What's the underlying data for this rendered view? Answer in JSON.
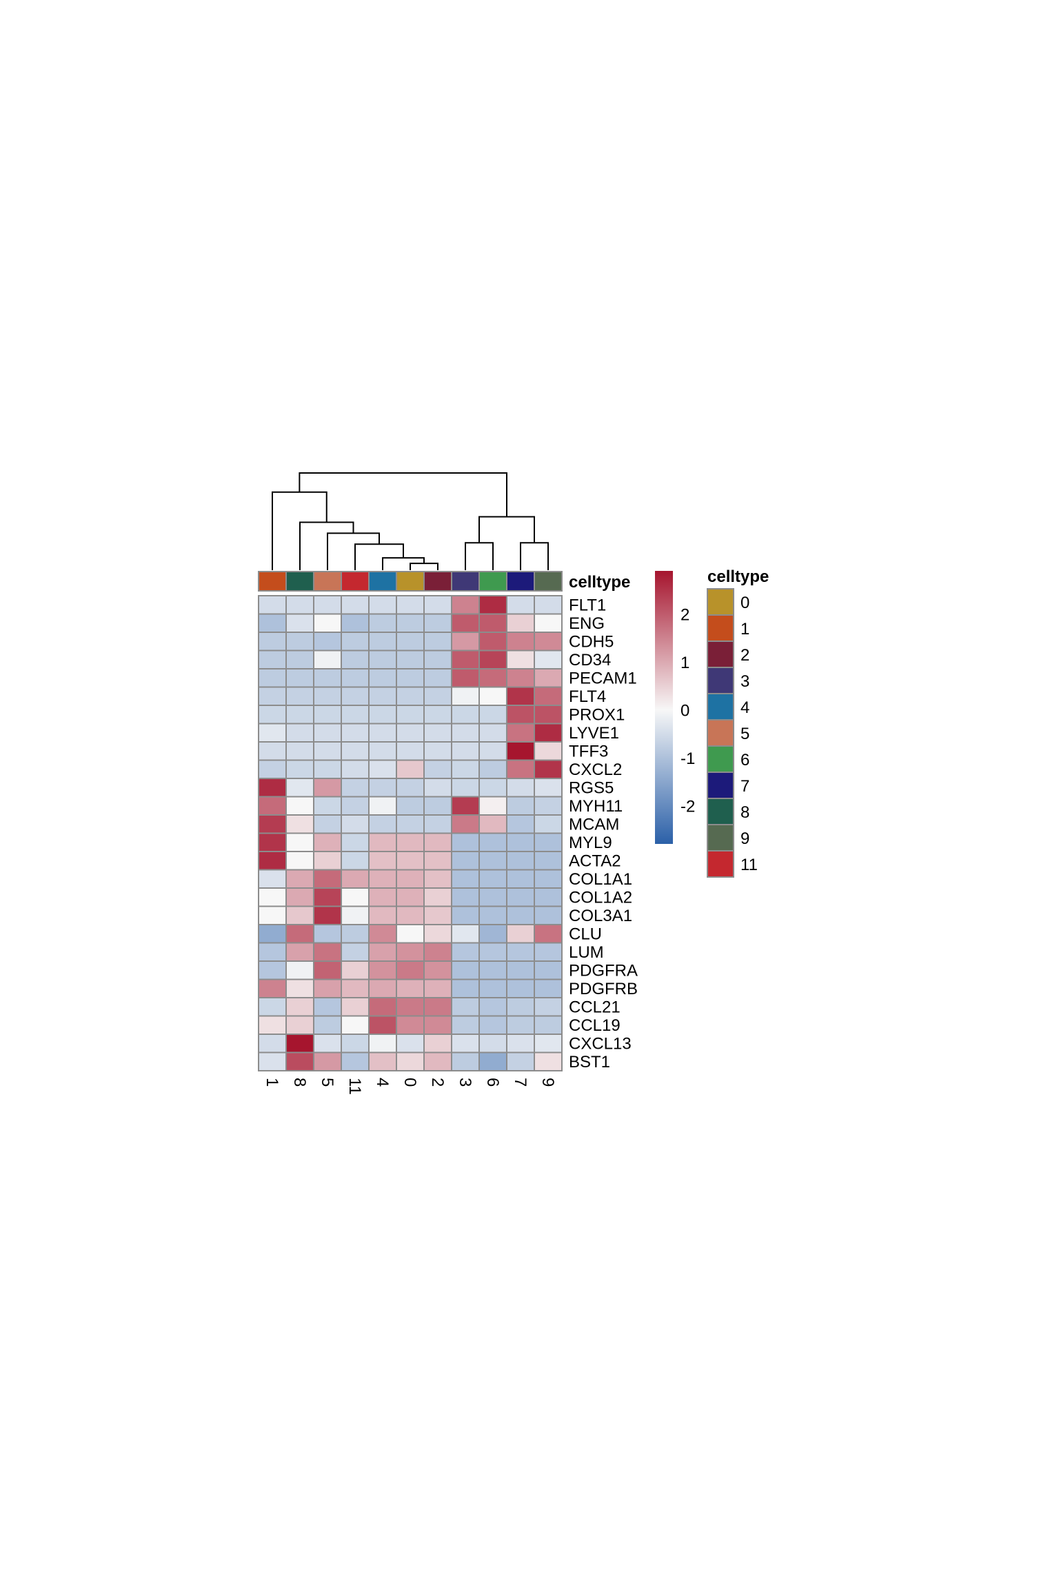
{
  "chart_data": {
    "type": "heatmap",
    "title": "",
    "xlabel": "",
    "ylabel": "",
    "columns": [
      "1",
      "8",
      "5",
      "11",
      "4",
      "0",
      "2",
      "3",
      "6",
      "7",
      "9"
    ],
    "rows": [
      "FLT1",
      "ENG",
      "CDH5",
      "CD34",
      "PECAM1",
      "FLT4",
      "PROX1",
      "LYVE1",
      "TFF3",
      "CXCL2",
      "RGS5",
      "MYH11",
      "MCAM",
      "MYL9",
      "ACTA2",
      "COL1A1",
      "COL1A2",
      "COL3A1",
      "CLU",
      "LUM",
      "PDGFRA",
      "PDGFRB",
      "CCL21",
      "CCL19",
      "CXCL13",
      "BST1"
    ],
    "values": [
      [
        -0.5,
        -0.5,
        -0.5,
        -0.5,
        -0.5,
        -0.5,
        -0.5,
        1.5,
        2.6,
        -0.5,
        -0.5
      ],
      [
        -1.0,
        -0.4,
        0.0,
        -1.0,
        -0.8,
        -0.8,
        -0.8,
        2.0,
        2.0,
        0.5,
        0.0
      ],
      [
        -0.8,
        -0.8,
        -0.9,
        -0.8,
        -0.8,
        -0.8,
        -0.8,
        1.2,
        2.0,
        1.5,
        1.4
      ],
      [
        -0.8,
        -0.8,
        -0.1,
        -0.8,
        -0.8,
        -0.8,
        -0.8,
        2.0,
        2.3,
        0.3,
        -0.3
      ],
      [
        -0.8,
        -0.8,
        -0.8,
        -0.8,
        -0.8,
        -0.8,
        -0.8,
        2.0,
        1.8,
        1.5,
        1.0
      ],
      [
        -0.7,
        -0.7,
        -0.7,
        -0.7,
        -0.7,
        -0.7,
        -0.7,
        -0.1,
        0.0,
        2.5,
        1.8
      ],
      [
        -0.6,
        -0.6,
        -0.6,
        -0.6,
        -0.6,
        -0.6,
        -0.6,
        -0.6,
        -0.6,
        2.1,
        2.1
      ],
      [
        -0.3,
        -0.5,
        -0.5,
        -0.5,
        -0.5,
        -0.5,
        -0.5,
        -0.5,
        -0.5,
        1.7,
        2.6
      ],
      [
        -0.5,
        -0.5,
        -0.5,
        -0.5,
        -0.5,
        -0.5,
        -0.5,
        -0.5,
        -0.5,
        2.9,
        0.4
      ],
      [
        -0.7,
        -0.6,
        -0.6,
        -0.5,
        -0.4,
        0.6,
        -0.7,
        -0.6,
        -0.8,
        1.7,
        2.5
      ],
      [
        2.6,
        -0.3,
        1.2,
        -0.7,
        -0.7,
        -0.7,
        -0.5,
        -0.6,
        -0.6,
        -0.5,
        -0.4
      ],
      [
        1.8,
        0.0,
        -0.6,
        -0.7,
        -0.1,
        -0.8,
        -0.8,
        2.4,
        0.1,
        -0.8,
        -0.7
      ],
      [
        2.4,
        0.3,
        -0.7,
        -0.5,
        -0.7,
        -0.7,
        -0.7,
        1.6,
        0.8,
        -0.9,
        -0.6
      ],
      [
        2.5,
        0.0,
        0.9,
        -0.6,
        0.8,
        0.8,
        0.8,
        -1.0,
        -1.0,
        -1.0,
        -1.0
      ],
      [
        2.6,
        0.0,
        0.5,
        -0.6,
        0.7,
        0.7,
        0.7,
        -1.0,
        -1.0,
        -1.0,
        -1.0
      ],
      [
        -0.4,
        1.0,
        1.8,
        1.0,
        0.9,
        0.9,
        0.7,
        -1.0,
        -1.0,
        -1.0,
        -1.0
      ],
      [
        0.0,
        1.0,
        2.3,
        0.0,
        0.9,
        0.9,
        0.5,
        -1.0,
        -1.0,
        -1.0,
        -1.0
      ],
      [
        0.0,
        0.6,
        2.5,
        -0.1,
        0.8,
        0.8,
        0.6,
        -1.0,
        -1.0,
        -1.0,
        -1.0
      ],
      [
        -1.4,
        1.8,
        -0.9,
        -0.8,
        1.4,
        0.0,
        0.4,
        -0.3,
        -1.2,
        0.5,
        1.7
      ],
      [
        -0.9,
        1.1,
        1.7,
        -0.7,
        1.1,
        1.3,
        1.5,
        -0.9,
        -0.9,
        -0.9,
        -0.9
      ],
      [
        -0.9,
        -0.1,
        1.9,
        0.5,
        1.3,
        1.6,
        1.3,
        -1.0,
        -1.0,
        -1.0,
        -1.0
      ],
      [
        1.5,
        0.3,
        1.1,
        0.8,
        1.0,
        0.9,
        0.9,
        -1.0,
        -1.0,
        -1.0,
        -1.0
      ],
      [
        -0.6,
        0.5,
        -0.9,
        0.5,
        1.8,
        1.6,
        1.6,
        -0.8,
        -0.9,
        -0.8,
        -0.7
      ],
      [
        0.3,
        0.5,
        -0.8,
        0.0,
        2.1,
        1.4,
        1.4,
        -0.8,
        -0.9,
        -0.8,
        -0.8
      ],
      [
        -0.5,
        2.9,
        -0.4,
        -0.6,
        -0.1,
        -0.4,
        0.5,
        -0.4,
        -0.5,
        -0.4,
        -0.3
      ],
      [
        -0.4,
        2.2,
        1.2,
        -0.9,
        0.7,
        0.4,
        0.8,
        -0.8,
        -1.4,
        -0.7,
        0.3
      ]
    ],
    "color_scale": {
      "min": -2.8,
      "max": 2.9,
      "low_color": "#2b60a8",
      "mid_color": "#f7f7f7",
      "high_color": "#a6152e",
      "ticks": [
        2,
        1,
        0,
        -1,
        -2
      ]
    },
    "annotation": {
      "title": "celltype",
      "column_celltypes": [
        "1",
        "8",
        "5",
        "11",
        "4",
        "0",
        "2",
        "3",
        "6",
        "7",
        "9"
      ],
      "legend": [
        {
          "label": "0",
          "color": "#b8922a"
        },
        {
          "label": "1",
          "color": "#c44d1c"
        },
        {
          "label": "2",
          "color": "#7a1f37"
        },
        {
          "label": "3",
          "color": "#3f3876"
        },
        {
          "label": "4",
          "color": "#1e72a3"
        },
        {
          "label": "5",
          "color": "#c87557"
        },
        {
          "label": "6",
          "color": "#3f9a4f"
        },
        {
          "label": "7",
          "color": "#1c1a7a"
        },
        {
          "label": "8",
          "color": "#1f5f4e"
        },
        {
          "label": "9",
          "color": "#566a51"
        },
        {
          "label": "11",
          "color": "#c4282f"
        }
      ]
    },
    "dendrogram": {
      "merges": [
        [
          -6,
          -7,
          0.25
        ],
        [
          -5,
          1,
          0.45
        ],
        [
          -4,
          2,
          0.95
        ],
        [
          -8,
          -9,
          1.0
        ],
        [
          -10,
          -11,
          1.0
        ],
        [
          -3,
          3,
          1.35
        ],
        [
          -2,
          6,
          1.75
        ],
        [
          4,
          5,
          1.95
        ],
        [
          -1,
          7,
          2.85
        ],
        [
          8,
          9,
          3.55
        ]
      ]
    }
  }
}
